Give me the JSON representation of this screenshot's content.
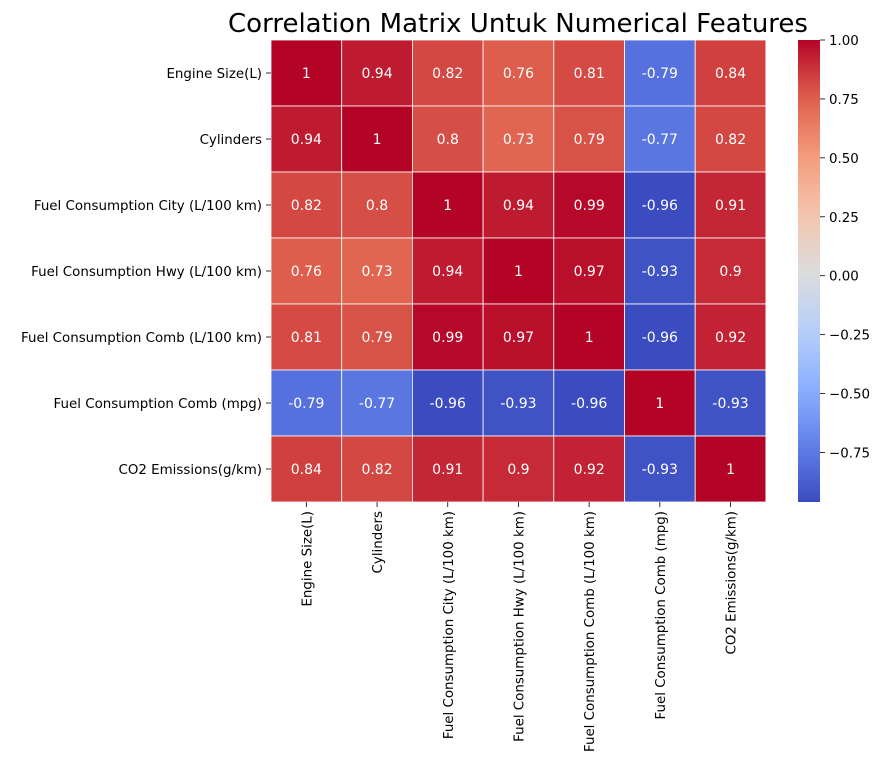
{
  "chart_data": {
    "type": "heatmap",
    "title": "Correlation Matrix Untuk Numerical Features",
    "xlabel": "",
    "ylabel": "",
    "labels": [
      "Engine Size(L)",
      "Cylinders",
      "Fuel Consumption City (L/100 km)",
      "Fuel Consumption Hwy (L/100 km)",
      "Fuel Consumption Comb (L/100 km)",
      "Fuel Consumption Comb (mpg)",
      "CO2 Emissions(g/km)"
    ],
    "matrix": [
      [
        1,
        0.94,
        0.82,
        0.76,
        0.81,
        -0.79,
        0.84
      ],
      [
        0.94,
        1,
        0.8,
        0.73,
        0.79,
        -0.77,
        0.82
      ],
      [
        0.82,
        0.8,
        1,
        0.94,
        0.99,
        -0.96,
        0.91
      ],
      [
        0.76,
        0.73,
        0.94,
        1,
        0.97,
        -0.93,
        0.9
      ],
      [
        0.81,
        0.79,
        0.99,
        0.97,
        1,
        -0.96,
        0.92
      ],
      [
        -0.79,
        -0.77,
        -0.96,
        -0.93,
        -0.96,
        1,
        -0.93
      ],
      [
        0.84,
        0.82,
        0.91,
        0.9,
        0.92,
        -0.93,
        1
      ]
    ],
    "colormap": "coolwarm",
    "color_range": [
      -0.96,
      1
    ],
    "annotations": true,
    "colorbar": {
      "ticks": [
        1.0,
        0.75,
        0.5,
        0.25,
        0.0,
        -0.25,
        -0.5,
        -0.75
      ],
      "tick_labels": [
        "1.00",
        "0.75",
        "0.50",
        "0.25",
        "0.00",
        "−0.25",
        "−0.50",
        "−0.75"
      ]
    },
    "grid_lines": "white"
  }
}
